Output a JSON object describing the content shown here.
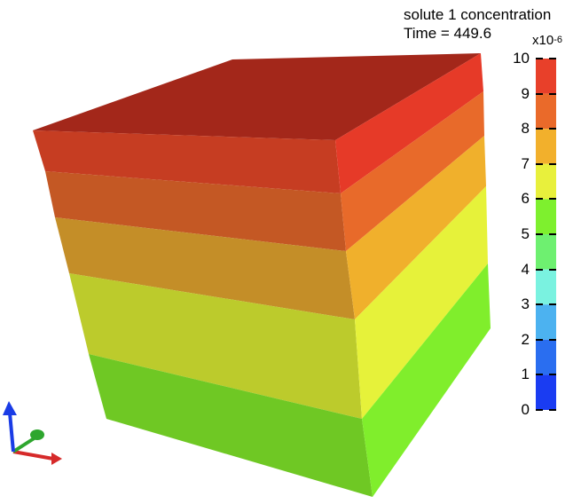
{
  "title": {
    "line1": "solute 1 concentration",
    "line2": "Time = 449.6"
  },
  "colorbar": {
    "multiplier": "x10",
    "exponent": "-6",
    "min": 0,
    "max": 10,
    "tick_labels": [
      "10",
      "9",
      "8",
      "7",
      "6",
      "5",
      "4",
      "3",
      "2",
      "1",
      "0"
    ],
    "bands": [
      {
        "from": 9,
        "to": 10,
        "color": "#e8402a"
      },
      {
        "from": 8,
        "to": 9,
        "color": "#ea6a2a"
      },
      {
        "from": 7,
        "to": 8,
        "color": "#f2b02c"
      },
      {
        "from": 6,
        "to": 7,
        "color": "#e8f03c"
      },
      {
        "from": 5,
        "to": 6,
        "color": "#7ef02e"
      },
      {
        "from": 4,
        "to": 5,
        "color": "#6ef070"
      },
      {
        "from": 3,
        "to": 4,
        "color": "#7af2e0"
      },
      {
        "from": 2,
        "to": 3,
        "color": "#4cb2f0"
      },
      {
        "from": 1,
        "to": 2,
        "color": "#2a6ef0"
      },
      {
        "from": 0,
        "to": 1,
        "color": "#1a3cf2"
      }
    ]
  },
  "cube": {
    "top_color": "#a3271a",
    "front_bands": [
      {
        "from": 9,
        "to": 10,
        "color": "#c63d22"
      },
      {
        "from": 8,
        "to": 9,
        "color": "#c45824"
      },
      {
        "from": 7,
        "to": 8,
        "color": "#c48e28"
      },
      {
        "from": 6,
        "to": 7,
        "color": "#bccb2c"
      },
      {
        "from": 5,
        "to": 6,
        "color": "#6fc824"
      }
    ],
    "side_bands": [
      {
        "from": 9,
        "to": 10,
        "color": "#e63a28"
      },
      {
        "from": 8,
        "to": 9,
        "color": "#e86a2a"
      },
      {
        "from": 7,
        "to": 8,
        "color": "#f0b02c"
      },
      {
        "from": 6,
        "to": 7,
        "color": "#e6f23a"
      },
      {
        "from": 5,
        "to": 6,
        "color": "#80ee2c"
      }
    ]
  },
  "axes_triad": {
    "x_color": "#d62a2a",
    "y_color": "#2ea62e",
    "z_color": "#1a3ce6"
  }
}
